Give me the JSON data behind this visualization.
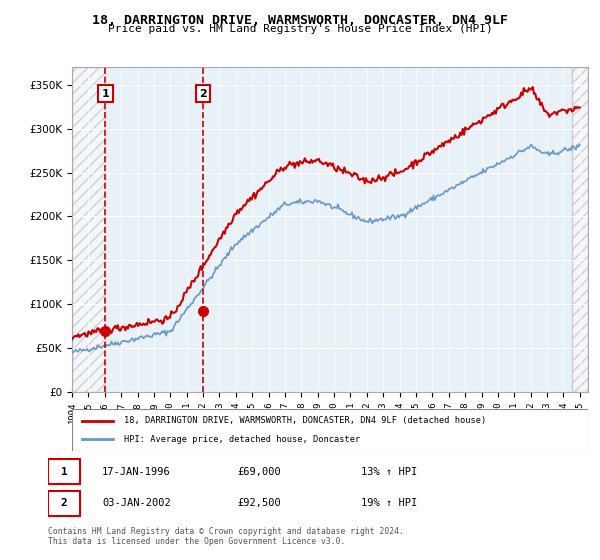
{
  "title": "18, DARRINGTON DRIVE, WARMSWORTH, DONCASTER, DN4 9LF",
  "subtitle": "Price paid vs. HM Land Registry's House Price Index (HPI)",
  "sale1_date": "17-JAN-1996",
  "sale1_price": 69000,
  "sale1_hpi": "13% ↑ HPI",
  "sale2_date": "03-JAN-2002",
  "sale2_price": 92500,
  "sale2_hpi": "19% ↑ HPI",
  "legend_line1": "18, DARRINGTON DRIVE, WARMSWORTH, DONCASTER, DN4 9LF (detached house)",
  "legend_line2": "HPI: Average price, detached house, Doncaster",
  "footnote": "Contains HM Land Registry data © Crown copyright and database right 2024.\nThis data is licensed under the Open Government Licence v3.0.",
  "hpi_color": "#6699cc",
  "price_color": "#cc0000",
  "marker_color": "#cc0000",
  "hatch_color": "#cccccc",
  "sale1_x": 1996.04,
  "sale2_x": 2002.01,
  "ylim": [
    0,
    370000
  ],
  "xlim_start": 1994,
  "xlim_end": 2025.5
}
